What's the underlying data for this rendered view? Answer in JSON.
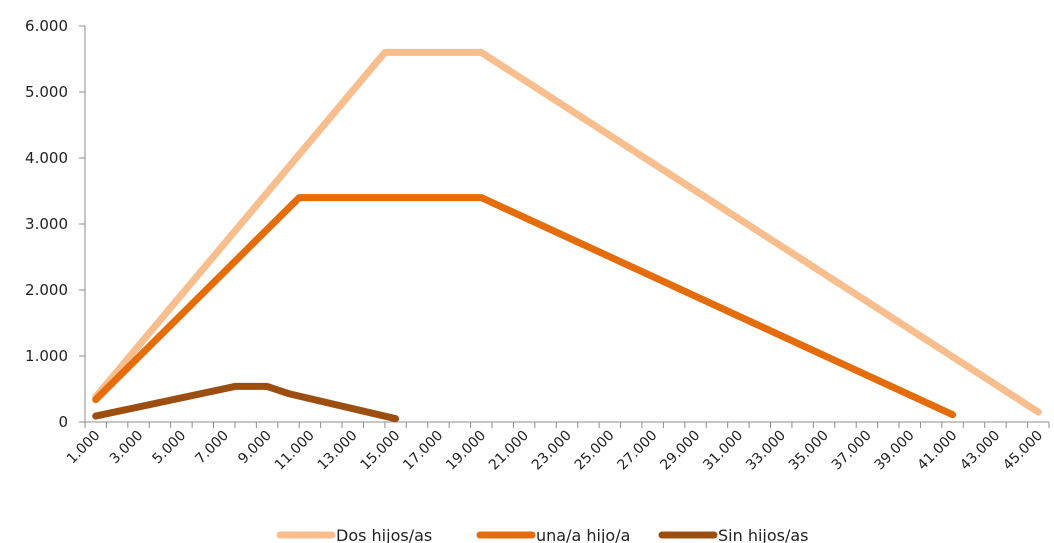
{
  "chart_data": {
    "type": "line",
    "title": "",
    "xlabel": "",
    "ylabel": "",
    "x": [
      1000,
      2000,
      3000,
      4000,
      5000,
      6000,
      7000,
      8000,
      9000,
      10000,
      11000,
      12000,
      13000,
      14000,
      15000,
      16000,
      17000,
      18000,
      19000,
      20000,
      21000,
      22000,
      23000,
      24000,
      25000,
      26000,
      27000,
      28000,
      29000,
      30000,
      31000,
      32000,
      33000,
      34000,
      35000,
      36000,
      37000,
      38000,
      39000,
      40000,
      41000,
      42000,
      43000,
      44000,
      45000
    ],
    "x_tick_labels": [
      "1.000",
      "3.000",
      "5.000",
      "7.000",
      "9.000",
      "11.000",
      "13.000",
      "15.000",
      "17.000",
      "19.000",
      "21.000",
      "23.000",
      "25.000",
      "27.000",
      "29.000",
      "31.000",
      "33.000",
      "35.000",
      "37.000",
      "39.000",
      "41.000",
      "43.000",
      "45.000"
    ],
    "y_ticks": [
      0,
      1000,
      2000,
      3000,
      4000,
      5000,
      6000
    ],
    "y_tick_labels": [
      "0",
      "1.000",
      "2.000",
      "3.000",
      "4.000",
      "5.000",
      "6.000"
    ],
    "ylim": [
      0,
      6000
    ],
    "grid": false,
    "legend_position": "bottom",
    "series": [
      {
        "name": "Dos hijos/as",
        "color": "#F8BE8E",
        "points": [
          [
            1000,
            380
          ],
          [
            14500,
            5600
          ],
          [
            19000,
            5600
          ],
          [
            45000,
            150
          ]
        ]
      },
      {
        "name": "una/a hijo/a",
        "color": "#E46C0A",
        "points": [
          [
            1000,
            340
          ],
          [
            10500,
            3400
          ],
          [
            19000,
            3400
          ],
          [
            41000,
            110
          ]
        ]
      },
      {
        "name": "Sin hijos/as",
        "color": "#9C4D10",
        "points": [
          [
            1000,
            90
          ],
          [
            7500,
            540
          ],
          [
            9000,
            540
          ],
          [
            10000,
            430
          ],
          [
            15000,
            50
          ]
        ]
      }
    ]
  }
}
